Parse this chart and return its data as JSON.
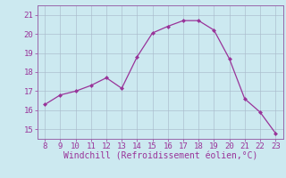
{
  "x": [
    8,
    9,
    10,
    11,
    12,
    13,
    14,
    15,
    16,
    17,
    18,
    19,
    20,
    21,
    22,
    23
  ],
  "y": [
    16.3,
    16.8,
    17.0,
    17.3,
    17.7,
    17.15,
    18.8,
    20.05,
    20.4,
    20.7,
    20.7,
    20.2,
    18.7,
    16.6,
    15.9,
    14.8
  ],
  "line_color": "#993399",
  "marker": "D",
  "marker_size": 2.5,
  "bg_color": "#cce9f0",
  "grid_color": "#aabbcc",
  "xlabel": "Windchill (Refroidissement éolien,°C)",
  "xlabel_color": "#993399",
  "tick_color": "#993399",
  "spine_color": "#9966aa",
  "ylim": [
    14.5,
    21.5
  ],
  "xlim": [
    7.5,
    23.5
  ],
  "yticks": [
    15,
    16,
    17,
    18,
    19,
    20,
    21
  ],
  "xticks": [
    8,
    9,
    10,
    11,
    12,
    13,
    14,
    15,
    16,
    17,
    18,
    19,
    20,
    21,
    22,
    23
  ],
  "tick_fontsize": 6.5,
  "xlabel_fontsize": 7.0
}
